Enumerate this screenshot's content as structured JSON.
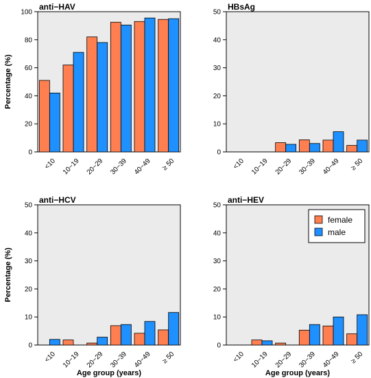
{
  "chart_data": [
    {
      "type": "bar",
      "title": "anti−HAV",
      "ylabel": "Percentage (%)",
      "xlabel": "",
      "ylim": [
        0,
        100
      ],
      "yticks": [
        0,
        20,
        40,
        60,
        80,
        100
      ],
      "categories": [
        "<10",
        "10−19",
        "20−29",
        "30−39",
        "40−49",
        "≥ 50"
      ],
      "series": [
        {
          "name": "female",
          "color": "#FF7F50",
          "values": [
            51,
            62,
            82,
            92.5,
            93,
            94.5
          ]
        },
        {
          "name": "male",
          "color": "#1E90FF",
          "values": [
            42,
            71,
            78,
            90.5,
            95.5,
            95
          ]
        }
      ],
      "grid": false
    },
    {
      "type": "bar",
      "title": "HBsAg",
      "ylabel": "",
      "xlabel": "",
      "ylim": [
        0,
        50
      ],
      "yticks": [
        0,
        10,
        20,
        30,
        40,
        50
      ],
      "categories": [
        "<10",
        "10−19",
        "20−29",
        "30−39",
        "40−49",
        "≥ 50"
      ],
      "series": [
        {
          "name": "female",
          "color": "#FF7F50",
          "values": [
            0,
            0,
            3.3,
            4.3,
            4.2,
            2.3
          ]
        },
        {
          "name": "male",
          "color": "#1E90FF",
          "values": [
            0,
            0,
            2.7,
            3.0,
            7.2,
            4.2
          ]
        }
      ],
      "grid": false
    },
    {
      "type": "bar",
      "title": "anti−HCV",
      "ylabel": "Percentage (%)",
      "xlabel": "Age group (years)",
      "ylim": [
        0,
        50
      ],
      "yticks": [
        0,
        10,
        20,
        30,
        40,
        50
      ],
      "categories": [
        "<10",
        "10−19",
        "20−29",
        "30−39",
        "40−49",
        "≥ 50"
      ],
      "series": [
        {
          "name": "female",
          "color": "#FF7F50",
          "values": [
            0,
            1.8,
            0.7,
            6.9,
            4.2,
            5.4
          ]
        },
        {
          "name": "male",
          "color": "#1E90FF",
          "values": [
            2.0,
            0,
            2.8,
            7.3,
            8.4,
            11.6
          ]
        }
      ],
      "grid": false
    },
    {
      "type": "bar",
      "title": "anti−HEV",
      "ylabel": "",
      "xlabel": "Age group (years)",
      "ylim": [
        0,
        50
      ],
      "yticks": [
        0,
        10,
        20,
        30,
        40,
        50
      ],
      "categories": [
        "<10",
        "10−19",
        "20−29",
        "30−39",
        "40−49",
        "≥ 50"
      ],
      "series": [
        {
          "name": "female",
          "color": "#FF7F50",
          "values": [
            0,
            1.8,
            0.7,
            5.3,
            6.8,
            4.0
          ]
        },
        {
          "name": "male",
          "color": "#1E90FF",
          "values": [
            0,
            1.5,
            0,
            7.3,
            10.0,
            10.8
          ]
        }
      ],
      "legend": {
        "placement": "top-right",
        "entries": [
          "female",
          "male"
        ]
      },
      "grid": false
    }
  ],
  "colors": {
    "panel_background": "#EBEBEB",
    "bar_outline": "#000000"
  }
}
